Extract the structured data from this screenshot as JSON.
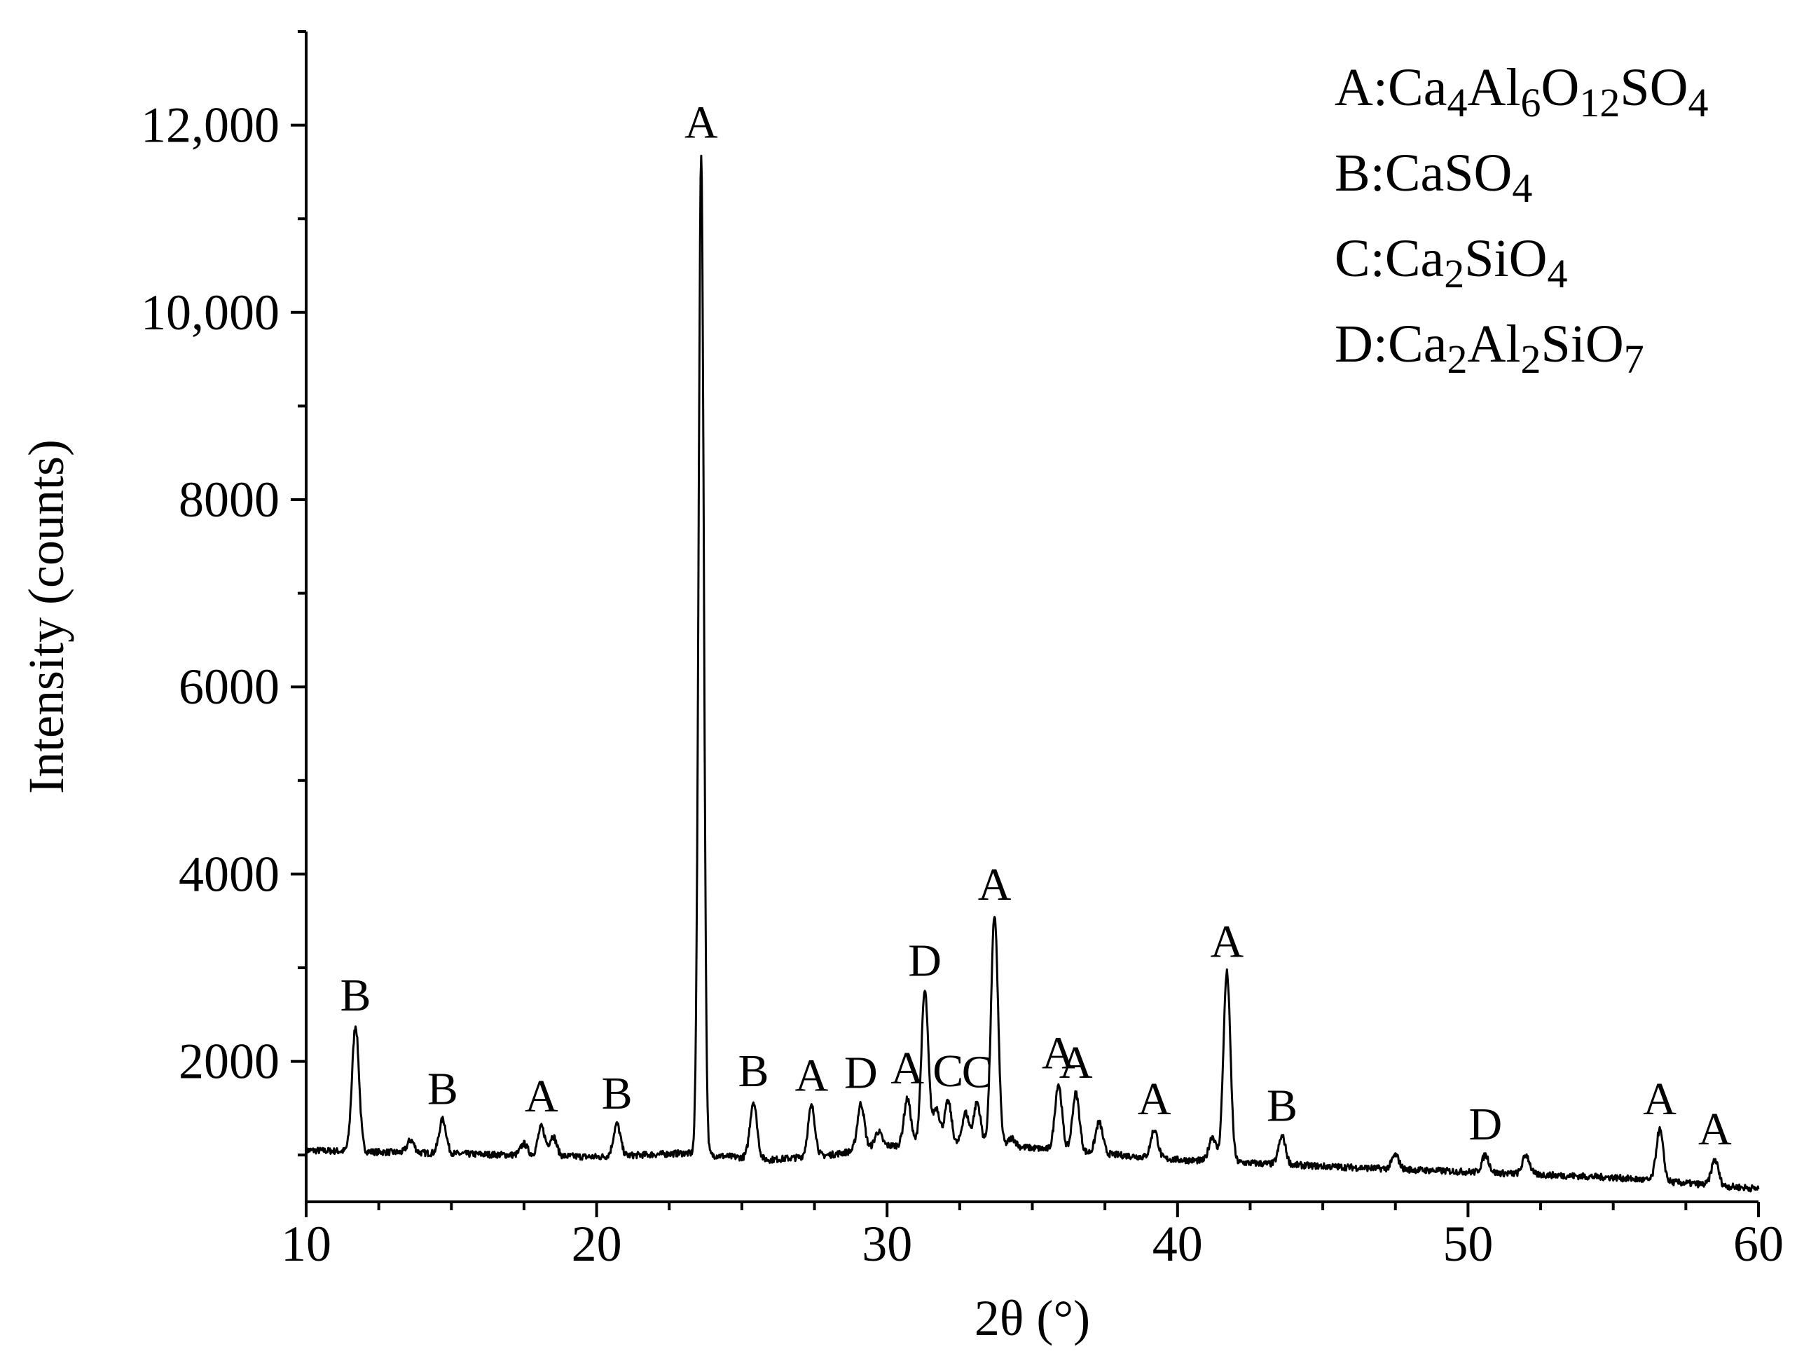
{
  "chart_data": {
    "type": "line",
    "xlabel": "2θ (°)",
    "ylabel": "Intensity (counts)",
    "xlim": [
      10,
      60
    ],
    "ylim": [
      500,
      13000
    ],
    "xticks": [
      "10",
      "20",
      "30",
      "40",
      "50",
      "60"
    ],
    "yticks": [
      "2000",
      "4000",
      "6000",
      "8000",
      "10,000",
      "12,000"
    ],
    "grid": false,
    "legend_position": "top-right",
    "legend": [
      {
        "phase": "A",
        "formula": "Ca4Al6O12SO4"
      },
      {
        "phase": "B",
        "formula": "CaSO4"
      },
      {
        "phase": "C",
        "formula": "Ca2SiO4"
      },
      {
        "phase": "D",
        "formula": "Ca2Al2SiO7"
      }
    ],
    "baseline": [
      [
        10,
        1050
      ],
      [
        20,
        980
      ],
      [
        23,
        1020
      ],
      [
        26,
        950
      ],
      [
        28,
        1000
      ],
      [
        30,
        1100
      ],
      [
        34,
        1100
      ],
      [
        36,
        1050
      ],
      [
        40,
        950
      ],
      [
        45,
        880
      ],
      [
        50,
        820
      ],
      [
        55,
        760
      ],
      [
        60,
        640
      ]
    ],
    "peaks": [
      {
        "x": 11.7,
        "y": 2380,
        "label": "B"
      },
      {
        "x": 13.6,
        "y": 1160,
        "label": ""
      },
      {
        "x": 14.7,
        "y": 1380,
        "label": "B"
      },
      {
        "x": 17.5,
        "y": 1120,
        "label": ""
      },
      {
        "x": 18.1,
        "y": 1300,
        "label": "A"
      },
      {
        "x": 18.5,
        "y": 1200,
        "label": ""
      },
      {
        "x": 20.7,
        "y": 1330,
        "label": "B"
      },
      {
        "x": 23.6,
        "y": 11700,
        "label": "A"
      },
      {
        "x": 25.4,
        "y": 1570,
        "label": "B"
      },
      {
        "x": 27.4,
        "y": 1520,
        "label": "A"
      },
      {
        "x": 29.1,
        "y": 1550,
        "label": "D"
      },
      {
        "x": 29.7,
        "y": 1250,
        "label": ""
      },
      {
        "x": 30.7,
        "y": 1600,
        "label": "A"
      },
      {
        "x": 31.3,
        "y": 2750,
        "label": "D"
      },
      {
        "x": 31.7,
        "y": 1500,
        "label": ""
      },
      {
        "x": 32.1,
        "y": 1570,
        "label": "C"
      },
      {
        "x": 32.7,
        "y": 1450,
        "label": ""
      },
      {
        "x": 33.1,
        "y": 1560,
        "label": "C"
      },
      {
        "x": 33.7,
        "y": 3560,
        "label": "A"
      },
      {
        "x": 34.3,
        "y": 1180,
        "label": ""
      },
      {
        "x": 35.9,
        "y": 1760,
        "label": "A"
      },
      {
        "x": 36.5,
        "y": 1660,
        "label": "A"
      },
      {
        "x": 37.3,
        "y": 1350,
        "label": ""
      },
      {
        "x": 39.2,
        "y": 1270,
        "label": "A"
      },
      {
        "x": 41.2,
        "y": 1200,
        "label": ""
      },
      {
        "x": 41.7,
        "y": 2950,
        "label": "A"
      },
      {
        "x": 43.6,
        "y": 1200,
        "label": "B"
      },
      {
        "x": 47.5,
        "y": 1000,
        "label": ""
      },
      {
        "x": 50.6,
        "y": 1000,
        "label": "D"
      },
      {
        "x": 52.0,
        "y": 1000,
        "label": ""
      },
      {
        "x": 56.6,
        "y": 1270,
        "label": "A"
      },
      {
        "x": 58.5,
        "y": 950,
        "label": "A"
      }
    ]
  }
}
